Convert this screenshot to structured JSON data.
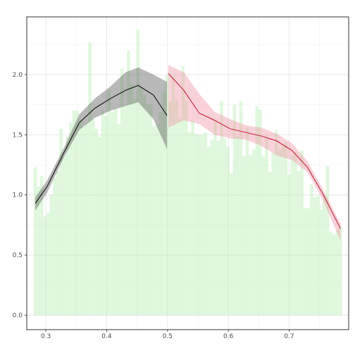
{
  "chart_data": {
    "type": "bar",
    "title": "",
    "xlabel": "",
    "ylabel": "",
    "xlim": [
      0.2686,
      0.7978
    ],
    "ylim": [
      -0.12,
      2.48
    ],
    "grid": true,
    "legend": "none",
    "x_ticks": [
      0.3,
      0.4,
      0.5,
      0.6,
      0.7
    ],
    "x_tick_labels": [
      "0.3",
      "0.4",
      "0.5",
      "0.6",
      "0.7"
    ],
    "y_ticks": [
      0.0,
      0.5,
      1.0,
      1.5,
      2.0
    ],
    "y_tick_labels": [
      "0.0",
      "0.5",
      "1.0",
      "1.5",
      "2.0"
    ],
    "bar_color": "#b9f0b4",
    "bar_opacity": 0.45,
    "bar_width": 0.0052,
    "bars": {
      "x": [
        0.2826,
        0.2879,
        0.2932,
        0.2985,
        0.3037,
        0.309,
        0.3143,
        0.3196,
        0.3249,
        0.3302,
        0.3354,
        0.3407,
        0.346,
        0.3513,
        0.3566,
        0.3618,
        0.3671,
        0.3724,
        0.3777,
        0.383,
        0.3883,
        0.3935,
        0.3988,
        0.4041,
        0.4094,
        0.4147,
        0.4199,
        0.4252,
        0.4305,
        0.4358,
        0.4411,
        0.4463,
        0.4516,
        0.4569,
        0.4622,
        0.4675,
        0.4728,
        0.478,
        0.4833,
        0.4886,
        0.4939,
        0.4992,
        0.5044,
        0.5097,
        0.515,
        0.5203,
        0.5256,
        0.5308,
        0.5361,
        0.5414,
        0.5467,
        0.552,
        0.5573,
        0.5625,
        0.5678,
        0.5731,
        0.5784,
        0.5837,
        0.5889,
        0.5942,
        0.5995,
        0.6048,
        0.6101,
        0.6154,
        0.6206,
        0.6259,
        0.6312,
        0.6365,
        0.6418,
        0.647,
        0.6523,
        0.6576,
        0.6629,
        0.6682,
        0.6734,
        0.6787,
        0.684,
        0.6893,
        0.6946,
        0.6999,
        0.7051,
        0.7104,
        0.7157,
        0.721,
        0.7263,
        0.7315,
        0.7368,
        0.7421,
        0.7474,
        0.7527,
        0.7579,
        0.7632,
        0.7685,
        0.7738,
        0.7791,
        0.7844
      ],
      "values": [
        1.23,
        1.07,
        1.16,
        0.82,
        0.85,
        1.0,
        1.14,
        1.2,
        1.55,
        1.32,
        1.48,
        1.6,
        1.7,
        1.7,
        1.63,
        1.57,
        1.6,
        2.27,
        1.63,
        1.55,
        1.48,
        1.7,
        1.66,
        1.87,
        1.69,
        1.72,
        1.59,
        2.05,
        1.74,
        2.2,
        1.92,
        1.8,
        2.37,
        1.89,
        1.83,
        1.75,
        1.76,
        1.57,
        1.59,
        1.69,
        1.86,
        2.0,
        1.78,
        1.99,
        1.79,
        1.63,
        2.07,
        1.78,
        1.52,
        1.62,
        1.51,
        1.5,
        1.5,
        1.52,
        1.4,
        1.46,
        1.63,
        1.45,
        1.78,
        1.47,
        1.4,
        1.18,
        1.75,
        1.49,
        1.78,
        1.32,
        1.56,
        1.33,
        1.38,
        1.74,
        1.71,
        1.32,
        1.5,
        1.19,
        1.35,
        1.54,
        1.38,
        1.41,
        1.44,
        1.17,
        1.33,
        1.35,
        1.2,
        1.37,
        0.89,
        0.89,
        1.09,
        0.98,
        0.99,
        0.88,
        1.0,
        1.24,
        0.69,
        0.67,
        0.71,
        0.74
      ]
    },
    "series": [
      {
        "color": "#000000",
        "band_color": "#4d4d4d",
        "band_opacity": 0.4,
        "x": [
          0.2826,
          0.3021,
          0.3295,
          0.3549,
          0.3803,
          0.4057,
          0.4311,
          0.452,
          0.4769,
          0.4992
        ],
        "y": [
          0.93,
          1.07,
          1.35,
          1.6,
          1.72,
          1.8,
          1.87,
          1.91,
          1.83,
          1.66
        ],
        "lower": [
          0.87,
          1.02,
          1.31,
          1.54,
          1.64,
          1.7,
          1.74,
          1.77,
          1.63,
          1.38
        ],
        "upper": [
          0.98,
          1.12,
          1.39,
          1.67,
          1.8,
          1.9,
          2.02,
          2.06,
          2.0,
          1.94
        ]
      },
      {
        "color": "#c8102e",
        "band_color": "#f08fa0",
        "band_opacity": 0.4,
        "x": [
          0.5013,
          0.5267,
          0.5521,
          0.5775,
          0.6029,
          0.6283,
          0.6537,
          0.6791,
          0.7045,
          0.7299,
          0.7553,
          0.7844
        ],
        "y": [
          2.01,
          1.87,
          1.68,
          1.62,
          1.55,
          1.52,
          1.49,
          1.45,
          1.37,
          1.23,
          1.01,
          0.72
        ],
        "lower": [
          1.56,
          1.62,
          1.59,
          1.5,
          1.47,
          1.46,
          1.41,
          1.33,
          1.29,
          1.19,
          0.96,
          0.62
        ],
        "upper": [
          2.08,
          2.02,
          1.84,
          1.69,
          1.63,
          1.58,
          1.56,
          1.51,
          1.43,
          1.28,
          1.05,
          0.76
        ]
      }
    ]
  }
}
